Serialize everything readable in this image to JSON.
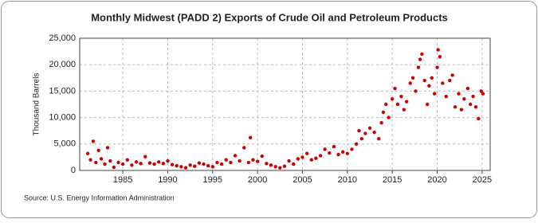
{
  "chart_data": {
    "type": "scatter",
    "title": "Monthly Midwest (PADD 2) Exports of Crude Oil and Petroleum Products",
    "y_label": "Thousand Barrels",
    "source": "Source: U.S. Energy Information Administration",
    "color": "#cc0000",
    "grid": true,
    "xlim": [
      1980.2,
      2025.9
    ],
    "ylim": [
      0,
      25000
    ],
    "xticks": [
      1985,
      1990,
      1995,
      2000,
      2005,
      2010,
      2015,
      2020,
      2025
    ],
    "yticks": [
      0,
      {
        "value": 5000,
        "label": "5,000"
      },
      {
        "value": 10000,
        "label": "10,000"
      },
      {
        "value": 15000,
        "label": "15,000"
      },
      {
        "value": 20000,
        "label": "20,000"
      },
      {
        "value": 25000,
        "label": "25,000"
      }
    ],
    "x": [
      1981.1,
      1981.4,
      1981.7,
      1982.0,
      1982.3,
      1982.6,
      1983.0,
      1983.3,
      1983.6,
      1984.0,
      1984.5,
      1985.0,
      1985.5,
      1986.0,
      1986.5,
      1987.0,
      1987.5,
      1988.0,
      1988.5,
      1989.0,
      1989.5,
      1990.0,
      1990.5,
      1991.0,
      1991.5,
      1992.0,
      1992.5,
      1993.0,
      1993.5,
      1994.0,
      1994.5,
      1995.0,
      1995.5,
      1996.0,
      1996.5,
      1997.0,
      1997.5,
      1998.0,
      1998.5,
      1999.0,
      1999.2,
      1999.5,
      2000.0,
      2000.5,
      2001.0,
      2001.5,
      2002.0,
      2002.5,
      2003.0,
      2003.5,
      2004.0,
      2004.5,
      2005.0,
      2005.5,
      2006.0,
      2006.5,
      2007.0,
      2007.5,
      2008.0,
      2008.5,
      2009.0,
      2009.5,
      2010.0,
      2010.5,
      2011.0,
      2011.3,
      2011.6,
      2012.0,
      2012.5,
      2013.0,
      2013.5,
      2013.8,
      2014.0,
      2014.3,
      2014.6,
      2015.0,
      2015.3,
      2015.6,
      2016.0,
      2016.3,
      2016.6,
      2017.0,
      2017.3,
      2017.6,
      2017.9,
      2018.1,
      2018.3,
      2018.6,
      2018.9,
      2019.1,
      2019.4,
      2019.7,
      2020.0,
      2020.1,
      2020.3,
      2020.6,
      2021.0,
      2021.4,
      2021.7,
      2022.0,
      2022.4,
      2022.7,
      2023.0,
      2023.4,
      2023.7,
      2024.0,
      2024.3,
      2024.6,
      2024.9,
      2025.1
    ],
    "values": [
      3200,
      2000,
      5500,
      1500,
      3800,
      2200,
      1200,
      4300,
      1800,
      600,
      1500,
      1200,
      2000,
      1000,
      1600,
      1300,
      2600,
      1400,
      1200,
      1600,
      1300,
      1800,
      1100,
      900,
      700,
      500,
      1000,
      800,
      1400,
      1200,
      900,
      700,
      1500,
      1200,
      2000,
      1500,
      2800,
      1800,
      4300,
      1500,
      6200,
      2000,
      1700,
      2700,
      1300,
      1000,
      700,
      500,
      800,
      1800,
      1200,
      2200,
      2500,
      3200,
      2000,
      2300,
      2800,
      4000,
      3300,
      4500,
      3000,
      3500,
      3200,
      4000,
      5000,
      7500,
      6000,
      7000,
      8000,
      7200,
      6000,
      9000,
      11000,
      12500,
      10000,
      13500,
      15500,
      12500,
      14000,
      11500,
      13000,
      16500,
      17500,
      15000,
      19500,
      21000,
      22000,
      17000,
      12500,
      16000,
      17500,
      14500,
      19500,
      22800,
      21500,
      16500,
      14000,
      17000,
      18000,
      12000,
      14500,
      11500,
      13500,
      15500,
      12500,
      14000,
      12000,
      9800,
      15000,
      14500
    ]
  }
}
